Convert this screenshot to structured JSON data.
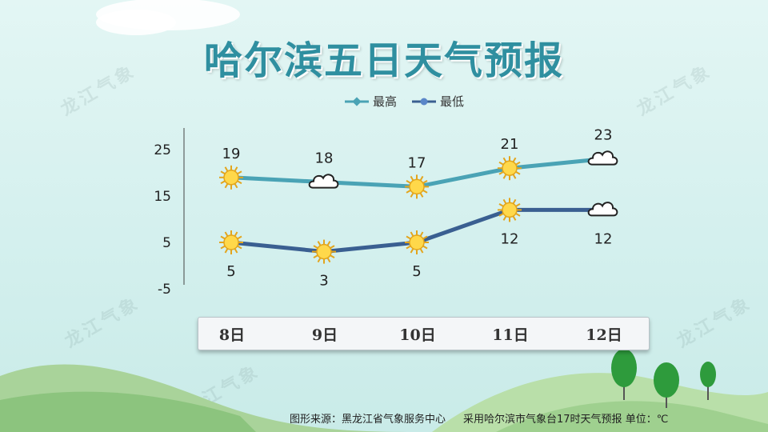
{
  "title": "哈尔滨五日天气预报",
  "watermark": "龙江气象",
  "legend": [
    {
      "label": "最高",
      "color": "#4aa3b5"
    },
    {
      "label": "最低",
      "color": "#3a5f91"
    }
  ],
  "footer": {
    "source": "图形来源：黑龙江省气象服务中心",
    "note": "采用哈尔滨市气象台17时天气预报 单位：℃"
  },
  "chart_data": {
    "type": "line",
    "categories": [
      "8日",
      "9日",
      "10日",
      "11日",
      "12日"
    ],
    "series": [
      {
        "name": "最高",
        "values": [
          19,
          18,
          17,
          21,
          23
        ],
        "color": "#4aa3b5",
        "icons": [
          "sun-icon",
          "cloud-icon",
          "sun-icon",
          "sun-icon",
          "cloud-icon"
        ]
      },
      {
        "name": "最低",
        "values": [
          5,
          3,
          5,
          12,
          12
        ],
        "color": "#3a5f91",
        "icons": [
          "sun-icon",
          "sun-icon",
          "sun-icon",
          "sun-icon",
          "cloud-icon"
        ]
      }
    ],
    "yticks": [
      -5,
      5,
      15,
      25
    ],
    "ylim": [
      -5,
      30
    ],
    "grid": false,
    "legend_position": "top-center"
  }
}
